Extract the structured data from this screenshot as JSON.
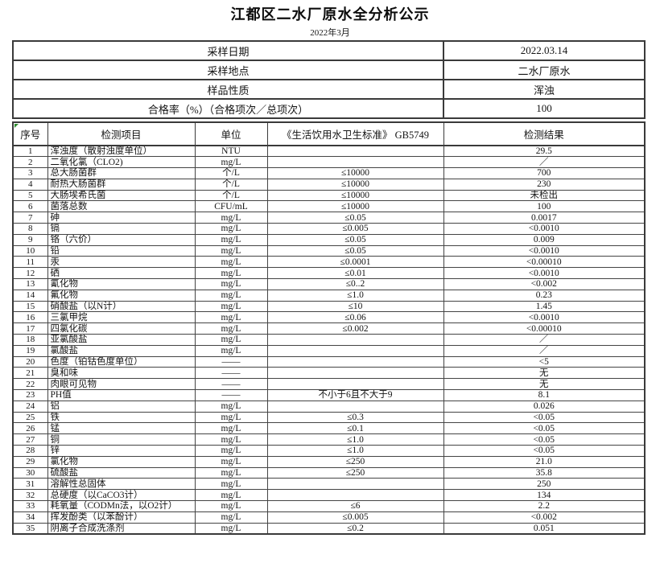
{
  "title": "江都区二水厂原水全分析公示",
  "subtitle": "2022年3月",
  "info_rows": [
    {
      "label": "采样日期",
      "value": "2022.03.14"
    },
    {
      "label": "采样地点",
      "value": "二水厂原水"
    },
    {
      "label": "样品性质",
      "value": "浑浊"
    },
    {
      "label": "合格率（%）（合格项次／总项次）",
      "value": "100"
    }
  ],
  "columns": [
    "序号",
    "检测项目",
    "单位",
    "《生活饮用水卫生标准》 GB5749",
    "检测结果"
  ],
  "rows": [
    {
      "no": "1",
      "item": "浑浊度（散射浊度单位）",
      "unit": "NTU",
      "standard": "",
      "result": "29.5"
    },
    {
      "no": "2",
      "item": "二氧化氯（CLO2)",
      "unit": "mg/L",
      "standard": "",
      "result": "／"
    },
    {
      "no": "3",
      "item": "总大肠菌群",
      "unit": "个/L",
      "standard": "≤10000",
      "result": "700"
    },
    {
      "no": "4",
      "item": "耐热大肠菌群",
      "unit": "个/L",
      "standard": "≤10000",
      "result": "230"
    },
    {
      "no": "5",
      "item": "大肠埃希氏菌",
      "unit": "个/L",
      "standard": "≤10000",
      "result": "未检出"
    },
    {
      "no": "6",
      "item": "菌落总数",
      "unit": "CFU/mL",
      "standard": "≤10000",
      "result": "100"
    },
    {
      "no": "7",
      "item": "砷",
      "unit": "mg/L",
      "standard": "≤0.05",
      "result": "0.0017"
    },
    {
      "no": "8",
      "item": "镉",
      "unit": "mg/L",
      "standard": "≤0.005",
      "result": "<0.0010"
    },
    {
      "no": "9",
      "item": "铬（六价）",
      "unit": "mg/L",
      "standard": "≤0.05",
      "result": "0.009"
    },
    {
      "no": "10",
      "item": "铅",
      "unit": "mg/L",
      "standard": "≤0.05",
      "result": "<0.0010"
    },
    {
      "no": "11",
      "item": "汞",
      "unit": "mg/L",
      "standard": "≤0.0001",
      "result": "<0.00010"
    },
    {
      "no": "12",
      "item": "硒",
      "unit": "mg/L",
      "standard": "≤0.01",
      "result": "<0.0010"
    },
    {
      "no": "13",
      "item": "氰化物",
      "unit": "mg/L",
      "standard": "≤0..2",
      "result": "<0.002"
    },
    {
      "no": "14",
      "item": "氟化物",
      "unit": "mg/L",
      "standard": "≤1.0",
      "result": "0.23"
    },
    {
      "no": "15",
      "item": "硝酸盐（以N计）",
      "unit": "mg/L",
      "standard": "≤10",
      "result": "1.45"
    },
    {
      "no": "16",
      "item": "三氯甲烷",
      "unit": "mg/L",
      "standard": "≤0.06",
      "result": "<0.0010"
    },
    {
      "no": "17",
      "item": "四氯化碳",
      "unit": "mg/L",
      "standard": "≤0.002",
      "result": "<0.00010"
    },
    {
      "no": "18",
      "item": "亚氯酸盐",
      "unit": "mg/L",
      "standard": "",
      "result": "／"
    },
    {
      "no": "19",
      "item": "氯酸盐",
      "unit": "mg/L",
      "standard": "",
      "result": "／"
    },
    {
      "no": "20",
      "item": "色度（铂钴色度单位）",
      "unit": "——",
      "standard": "",
      "result": "<5"
    },
    {
      "no": "21",
      "item": "臭和味",
      "unit": "——",
      "standard": "",
      "result": "无"
    },
    {
      "no": "22",
      "item": "肉眼可见物",
      "unit": "——",
      "standard": "",
      "result": "无"
    },
    {
      "no": "23",
      "item": "PH值",
      "unit": "——",
      "standard": "不小于6且不大于9",
      "result": "8.1"
    },
    {
      "no": "24",
      "item": "铝",
      "unit": "mg/L",
      "standard": "",
      "result": "0.026"
    },
    {
      "no": "25",
      "item": "铁",
      "unit": "mg/L",
      "standard": "≤0.3",
      "result": "<0.05"
    },
    {
      "no": "26",
      "item": "锰",
      "unit": "mg/L",
      "standard": "≤0.1",
      "result": "<0.05"
    },
    {
      "no": "27",
      "item": "铜",
      "unit": "mg/L",
      "standard": "≤1.0",
      "result": "<0.05"
    },
    {
      "no": "28",
      "item": "锌",
      "unit": "mg/L",
      "standard": "≤1.0",
      "result": "<0.05"
    },
    {
      "no": "29",
      "item": "氯化物",
      "unit": "mg/L",
      "standard": "≤250",
      "result": "21.0"
    },
    {
      "no": "30",
      "item": "硫酸盐",
      "unit": "mg/L",
      "standard": "≤250",
      "result": "35.8"
    },
    {
      "no": "31",
      "item": "溶解性总固体",
      "unit": "mg/L",
      "standard": "",
      "result": "250"
    },
    {
      "no": "32",
      "item": "总硬度（以CaCO3计）",
      "unit": "mg/L",
      "standard": "",
      "result": "134"
    },
    {
      "no": "33",
      "item": "耗氧量（CODMn法，以O2计）",
      "unit": "mg/L",
      "standard": "≤6",
      "result": "2.2"
    },
    {
      "no": "34",
      "item": "挥发酚类（以苯酚计）",
      "unit": "mg/L",
      "standard": "≤0.005",
      "result": "<0.002"
    },
    {
      "no": "35",
      "item": "阴离子合成洗涤剂",
      "unit": "mg/L",
      "standard": "≤0.2",
      "result": "0.051"
    }
  ],
  "colors": {
    "border": "#3a3a3a",
    "text": "#141414",
    "cell_note_marker_green": "#2e8b2e",
    "background": "#ffffff"
  },
  "icons": {
    "cell_note_marker": "green-corner-triangle"
  }
}
